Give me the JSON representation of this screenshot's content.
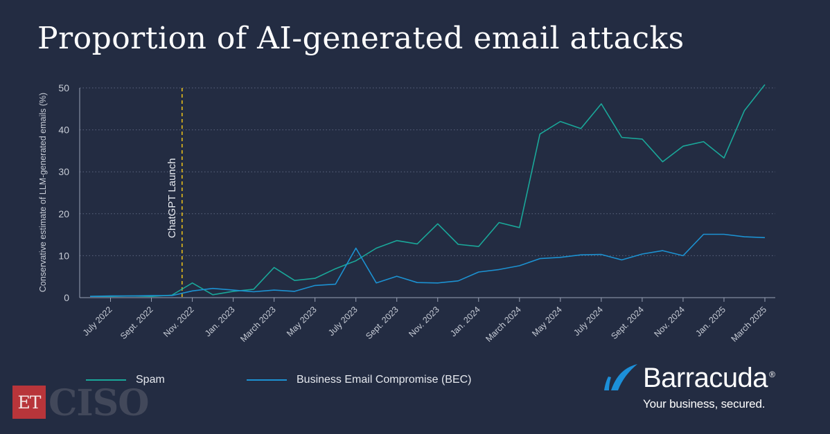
{
  "title": "Proportion of AI-generated email attacks",
  "chart_data": {
    "type": "line",
    "ylabel": "Conservative estimate of LLM-generated emails (%)",
    "ylim": [
      0,
      50
    ],
    "yticks": [
      0,
      10,
      20,
      30,
      40,
      50
    ],
    "grid": "horizontal-dotted",
    "x_tick_labels": [
      "July 2022",
      "Sept. 2022",
      "Nov. 2022",
      "Jan. 2023",
      "March 2023",
      "May 2023",
      "July 2023",
      "Sept. 2023",
      "Nov. 2023",
      "Jan. 2024",
      "March 2024",
      "May 2024",
      "July 2024",
      "Sept. 2024",
      "Nov. 2024",
      "Jan. 2025",
      "March 2025"
    ],
    "n_points": 34,
    "annotation": {
      "label": "ChatGPT Launch",
      "x_index": 4.5,
      "color": "#f0c419"
    },
    "series": [
      {
        "name": "Spam",
        "color": "#1aa89a",
        "values": [
          0.3,
          0.3,
          0.4,
          0.3,
          0.6,
          3.5,
          0.7,
          1.5,
          2.0,
          7.2,
          4.1,
          4.6,
          6.9,
          8.8,
          11.8,
          13.6,
          12.8,
          17.6,
          12.7,
          12.2,
          17.9,
          16.7,
          39.0,
          42.0,
          40.3,
          46.2,
          38.2,
          37.8,
          32.4,
          36.1,
          37.2,
          33.3,
          44.6,
          50.8
        ]
      },
      {
        "name": "Business Email Compromise (BEC)",
        "color": "#1c92d2",
        "values": [
          0.3,
          0.4,
          0.4,
          0.5,
          0.5,
          1.6,
          2.2,
          1.8,
          1.4,
          1.8,
          1.5,
          2.9,
          3.2,
          11.8,
          3.5,
          5.1,
          3.6,
          3.5,
          4.0,
          6.1,
          6.7,
          7.6,
          9.3,
          9.6,
          10.2,
          10.3,
          9.0,
          10.4,
          11.2,
          10.0,
          15.1,
          15.1,
          14.5,
          14.3
        ]
      }
    ]
  },
  "logos": {
    "et": "ET",
    "ciso": "CISO",
    "brand_name": "Barracuda",
    "brand_reg": "®",
    "tagline": "Your business, secured."
  }
}
